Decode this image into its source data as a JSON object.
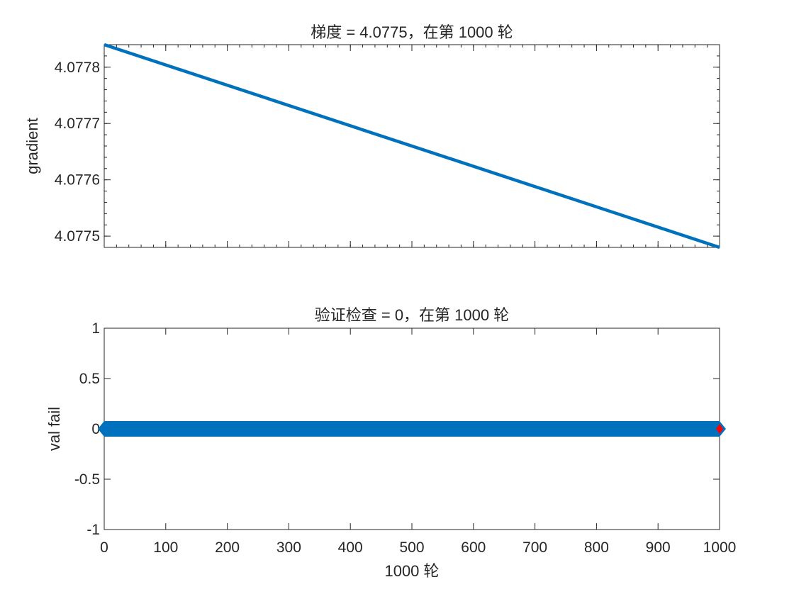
{
  "colors": {
    "line": "#0072BD",
    "marker": "#FF0000",
    "axis": "#262626",
    "background": "#FFFFFF"
  },
  "chart_data": [
    {
      "type": "line",
      "title": "梯度 = 4.0775，在第 1000 轮",
      "xlabel": "",
      "ylabel": "gradient",
      "xlim": [
        0,
        1000
      ],
      "ylim": [
        4.07748,
        4.07784
      ],
      "yticks": [
        4.0775,
        4.0776,
        4.0777,
        4.0778
      ],
      "ytick_labels": [
        "4.0775",
        "4.0776",
        "4.0777",
        "4.0778"
      ],
      "xtick_labels_visible": false,
      "grid": false,
      "series": [
        {
          "x": [
            0,
            1000
          ],
          "y": [
            4.07784,
            4.07748
          ],
          "color": "#0072BD"
        }
      ]
    },
    {
      "type": "line",
      "title": "验证检查 = 0，在第 1000 轮",
      "xlabel": "1000 轮",
      "ylabel": "val fail",
      "xlim": [
        0,
        1000
      ],
      "ylim": [
        -1,
        1
      ],
      "xticks": [
        0,
        100,
        200,
        300,
        400,
        500,
        600,
        700,
        800,
        900,
        1000
      ],
      "xtick_labels": [
        "0",
        "100",
        "200",
        "300",
        "400",
        "500",
        "600",
        "700",
        "800",
        "900",
        "1000"
      ],
      "yticks": [
        -1,
        -0.5,
        0,
        0.5,
        1
      ],
      "ytick_labels": [
        "-1",
        "-0.5",
        "0",
        "0.5",
        "1"
      ],
      "grid": false,
      "series": [
        {
          "x": [
            0,
            1000
          ],
          "y": [
            0,
            0
          ],
          "color": "#0072BD",
          "marker": "diamond"
        }
      ],
      "highlight_point": {
        "x": 1000,
        "y": 0,
        "color": "#FF0000",
        "marker": "diamond"
      }
    }
  ]
}
